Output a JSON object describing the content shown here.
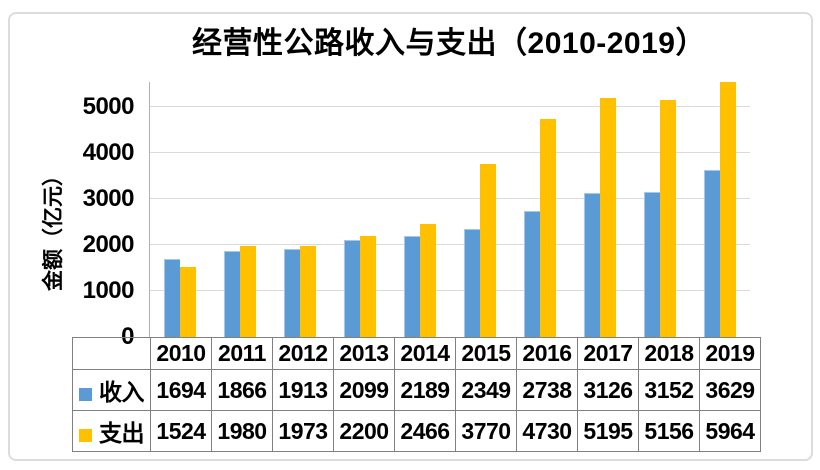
{
  "chart_data": {
    "type": "bar",
    "title": "经营性公路收入与支出（2010-2019）",
    "ylabel": "金额（亿元）",
    "categories": [
      "2010",
      "2011",
      "2012",
      "2013",
      "2014",
      "2015",
      "2016",
      "2017",
      "2018",
      "2019"
    ],
    "series": [
      {
        "name": "收入",
        "color": "#5B9BD5",
        "values": [
          1694,
          1866,
          1913,
          2099,
          2189,
          2349,
          2738,
          3126,
          3152,
          3629
        ]
      },
      {
        "name": "支出",
        "color": "#FFC000",
        "values": [
          1524,
          1980,
          1973,
          2200,
          2466,
          3770,
          4730,
          5195,
          5156,
          5964
        ]
      }
    ],
    "yticks": [
      0,
      1000,
      2000,
      3000,
      4000,
      5000
    ],
    "ylim": [
      0,
      5543
    ],
    "grid": true,
    "legend_position": "table-left",
    "colors": {
      "grid": "#dadada",
      "axis": "#b0b0b0",
      "table_border": "#808080",
      "text": "#000000",
      "frame": "#dcdcdc"
    }
  }
}
